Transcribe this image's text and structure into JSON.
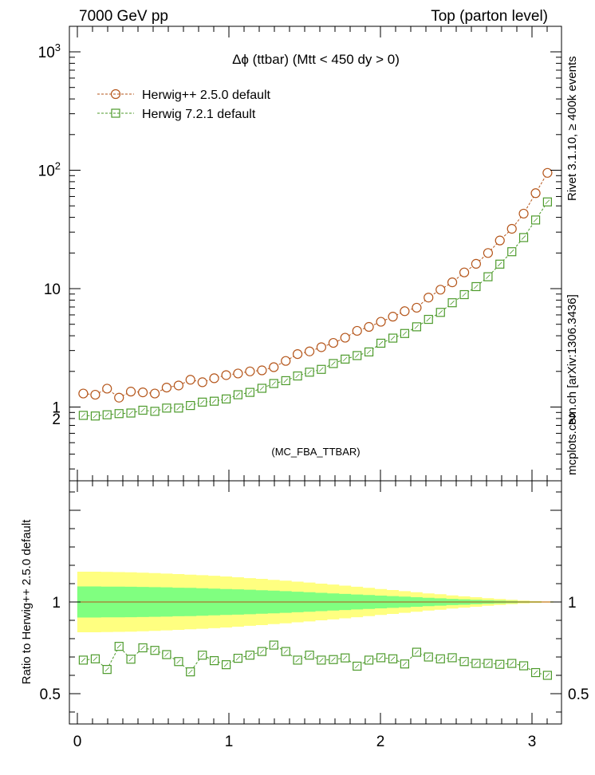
{
  "header": {
    "left": "7000 GeV pp",
    "right": "Top (parton level)"
  },
  "side_text": {
    "rivet": "Rivet 3.1.10, ≥ 400k events",
    "source": "mcplots.cern.ch [arXiv:1306.3436]"
  },
  "colors": {
    "herwigpp": "#b5561b",
    "herwig7": "#4c9a2a",
    "band_outer": "#ffff80",
    "band_inner": "#80ff80"
  },
  "chart_data": [
    {
      "type": "line",
      "title": "Δϕ (ttbar) (Mtt < 450 dy > 0)",
      "watermark": "(MC_FBA_TTBAR)",
      "yscale": "log",
      "ylim": [
        0.25,
        1700
      ],
      "xlim": [
        -0.06,
        3.21
      ],
      "grid": false,
      "legend_position": "top-left",
      "ytick_labels": [
        "1",
        "10",
        "10^2",
        "10^3"
      ],
      "x": [
        0.039,
        0.118,
        0.196,
        0.275,
        0.353,
        0.432,
        0.511,
        0.589,
        0.668,
        0.746,
        0.825,
        0.903,
        0.982,
        1.06,
        1.139,
        1.218,
        1.296,
        1.375,
        1.453,
        1.532,
        1.61,
        1.689,
        1.767,
        1.846,
        1.924,
        2.003,
        2.082,
        2.16,
        2.239,
        2.317,
        2.396,
        2.474,
        2.553,
        2.631,
        2.71,
        2.788,
        2.867,
        2.945,
        3.024,
        3.102
      ],
      "series": [
        {
          "name": "Herwig++ 2.5.0 default",
          "marker": "circle",
          "values": [
            1.3,
            1.27,
            1.43,
            1.2,
            1.35,
            1.33,
            1.3,
            1.46,
            1.52,
            1.7,
            1.62,
            1.75,
            1.86,
            1.92,
            2.0,
            2.04,
            2.17,
            2.45,
            2.8,
            2.95,
            3.2,
            3.48,
            3.85,
            4.4,
            4.75,
            5.25,
            5.8,
            6.45,
            6.9,
            8.4,
            9.8,
            11.3,
            13.7,
            16.2,
            20.0,
            25.5,
            32.0,
            43.0,
            64.0,
            95.0
          ]
        },
        {
          "name": "Herwig 7.2.1 default",
          "marker": "square",
          "values": [
            0.85,
            0.84,
            0.86,
            0.88,
            0.89,
            0.94,
            0.92,
            0.98,
            0.98,
            1.03,
            1.1,
            1.12,
            1.17,
            1.27,
            1.33,
            1.44,
            1.58,
            1.67,
            1.83,
            1.97,
            2.08,
            2.33,
            2.54,
            2.72,
            2.92,
            3.46,
            3.82,
            4.18,
            4.76,
            5.5,
            6.3,
            7.6,
            8.9,
            10.4,
            12.6,
            16.1,
            20.5,
            27.0,
            38.0,
            54.0
          ]
        }
      ]
    },
    {
      "type": "line",
      "ylabel": "Ratio to Herwig++ 2.5.0 default",
      "ylim": [
        0.33,
        2.25
      ],
      "xlim": [
        -0.06,
        3.21
      ],
      "grid": false,
      "xtick_labels": [
        "0",
        "1",
        "2",
        "3"
      ],
      "ytick_labels": [
        "0.5",
        "1",
        "2"
      ],
      "x": [
        0.039,
        0.118,
        0.196,
        0.275,
        0.353,
        0.432,
        0.511,
        0.589,
        0.668,
        0.746,
        0.825,
        0.903,
        0.982,
        1.06,
        1.139,
        1.218,
        1.296,
        1.375,
        1.453,
        1.532,
        1.61,
        1.689,
        1.767,
        1.846,
        1.924,
        2.003,
        2.082,
        2.16,
        2.239,
        2.317,
        2.396,
        2.474,
        2.553,
        2.631,
        2.71,
        2.788,
        2.867,
        2.945,
        3.024,
        3.102
      ],
      "series": [
        {
          "name": "Herwig 7.2.1 default",
          "marker": "square",
          "values": [
            0.683,
            0.69,
            0.632,
            0.758,
            0.688,
            0.75,
            0.736,
            0.713,
            0.675,
            0.619,
            0.71,
            0.68,
            0.658,
            0.693,
            0.71,
            0.73,
            0.765,
            0.73,
            0.683,
            0.71,
            0.683,
            0.686,
            0.695,
            0.65,
            0.683,
            0.696,
            0.69,
            0.662,
            0.726,
            0.7,
            0.69,
            0.696,
            0.675,
            0.665,
            0.665,
            0.66,
            0.665,
            0.652,
            0.615,
            0.6
          ]
        }
      ],
      "bands": {
        "outer_halfwidth": [
          0.165,
          0.165,
          0.164,
          0.163,
          0.162,
          0.16,
          0.158,
          0.155,
          0.152,
          0.149,
          0.146,
          0.143,
          0.139,
          0.135,
          0.13,
          0.126,
          0.121,
          0.116,
          0.111,
          0.106,
          0.1,
          0.095,
          0.089,
          0.083,
          0.077,
          0.071,
          0.065,
          0.059,
          0.053,
          0.047,
          0.042,
          0.036,
          0.031,
          0.026,
          0.021,
          0.016,
          0.012,
          0.008,
          0.005,
          0.003
        ],
        "inner_halfwidth": [
          0.085,
          0.085,
          0.084,
          0.084,
          0.083,
          0.082,
          0.081,
          0.08,
          0.078,
          0.077,
          0.075,
          0.073,
          0.071,
          0.069,
          0.067,
          0.064,
          0.062,
          0.059,
          0.056,
          0.053,
          0.05,
          0.047,
          0.044,
          0.041,
          0.038,
          0.035,
          0.032,
          0.029,
          0.026,
          0.023,
          0.02,
          0.017,
          0.015,
          0.012,
          0.01,
          0.008,
          0.006,
          0.004,
          0.003,
          0.002
        ]
      }
    }
  ]
}
